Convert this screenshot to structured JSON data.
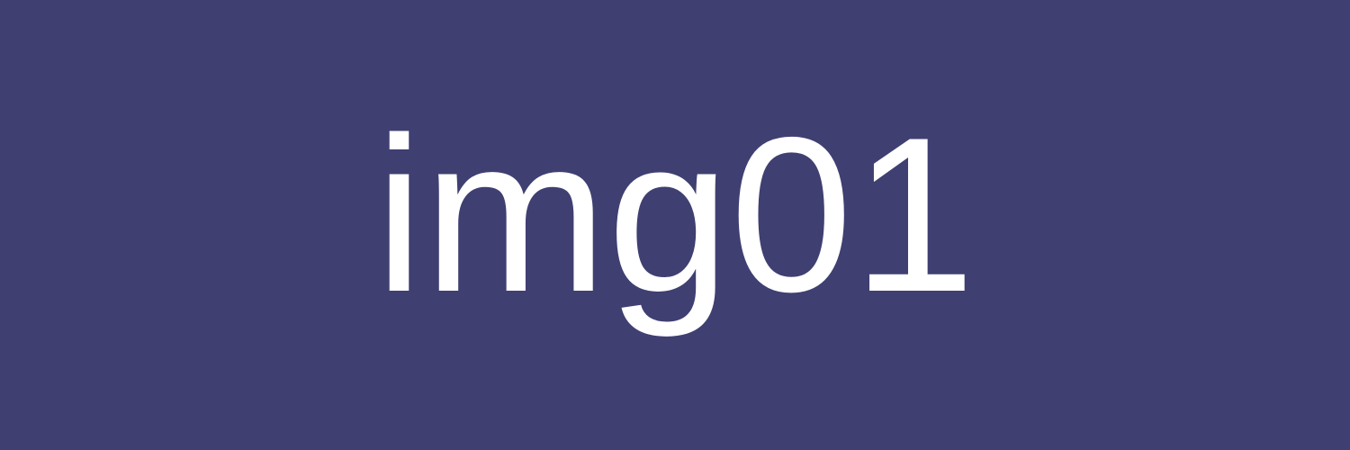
{
  "image": {
    "text": "img01",
    "background_color": "#3f3f72",
    "text_color": "#ffffff"
  }
}
